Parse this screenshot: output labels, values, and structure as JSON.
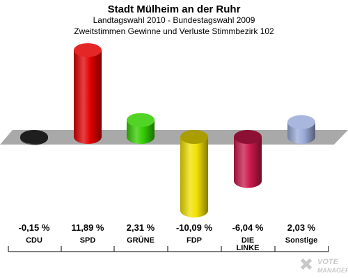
{
  "header": {
    "title": "Stadt Mülheim an der Ruhr",
    "subtitle1": "Landtagswahl 2010 - Bundestagswahl 2009",
    "subtitle2": "Zweitstimmen Gewinne und Verluste Stimmbezirk 102"
  },
  "chart_data": {
    "type": "bar",
    "categories": [
      "CDU",
      "SPD",
      "GRÜNE",
      "FDP",
      "DIE LINKE",
      "Sonstige"
    ],
    "values": [
      -0.15,
      11.89,
      2.31,
      -10.09,
      -6.04,
      2.03
    ],
    "value_labels": [
      "-0,15 %",
      "11,89 %",
      "2,31 %",
      "-10,09 %",
      "-6,04 %",
      "2,03 %"
    ],
    "colors": [
      "#2b2b2b",
      "#e00000",
      "#33cc00",
      "#f2e000",
      "#c8174a",
      "#9aaad8"
    ],
    "ylim": [
      -12,
      14
    ]
  },
  "logo": {
    "line1": "VOTE",
    "line2": "MANAGER"
  }
}
